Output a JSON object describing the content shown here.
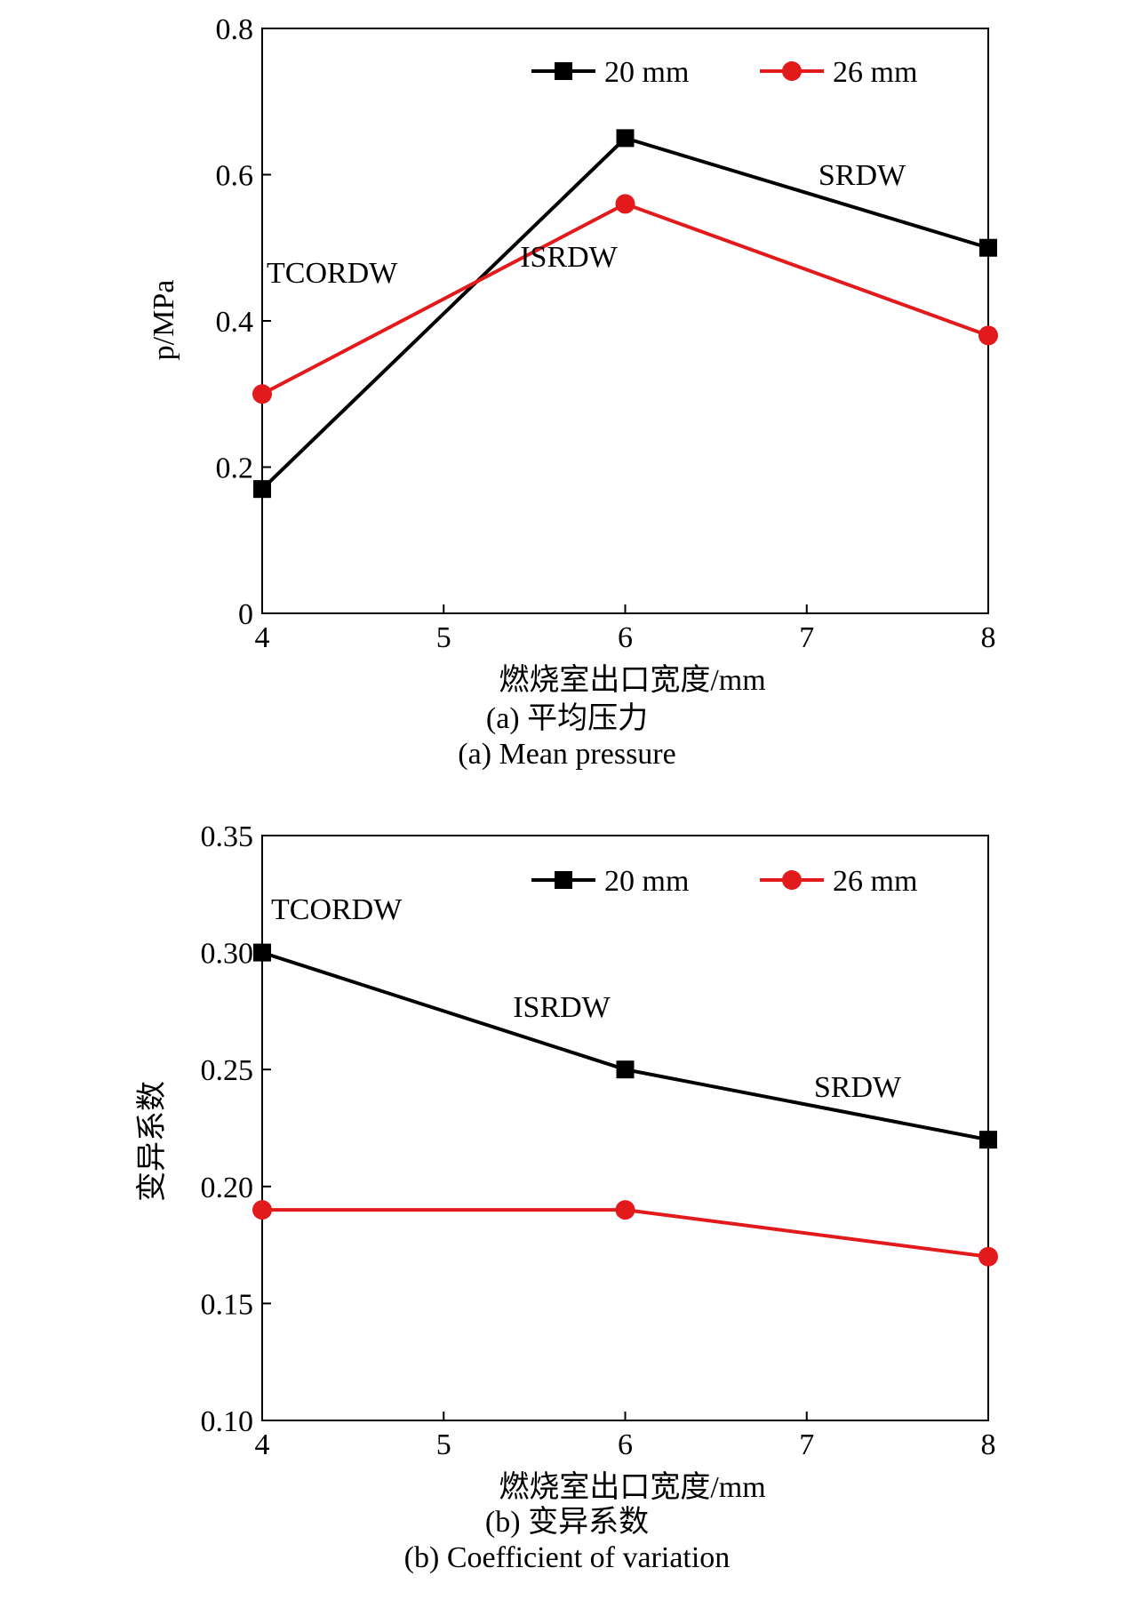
{
  "colors": {
    "black_series": "#000000",
    "red_series": "#e31a1c"
  },
  "chart_data": [
    {
      "type": "line",
      "xlabel": "燃烧室出口宽度/mm",
      "ylabel": "p/MPa",
      "x_ticks": [
        "4",
        "5",
        "6",
        "7",
        "8"
      ],
      "y_ticks": [
        "0",
        "0.2",
        "0.4",
        "0.6",
        "0.8"
      ],
      "xlim": [
        4,
        8
      ],
      "ylim": [
        0,
        0.8
      ],
      "grid": false,
      "legend_position": "top-right",
      "series": [
        {
          "name": "20 mm",
          "marker": "square",
          "color": "#000000",
          "x": [
            4,
            6,
            8
          ],
          "y": [
            0.17,
            0.65,
            0.5
          ]
        },
        {
          "name": "26 mm",
          "marker": "circle",
          "color": "#e31a1c",
          "x": [
            4,
            6,
            8
          ],
          "y": [
            0.3,
            0.56,
            0.38
          ]
        }
      ],
      "annotations": [
        {
          "text": "TCORDW",
          "x": 4,
          "y": 0.3
        },
        {
          "text": "ISRDW",
          "x": 6,
          "y": 0.56
        },
        {
          "text": "SRDW",
          "x": 8,
          "y": 0.5
        }
      ],
      "caption_cn": "(a) 平均压力",
      "caption_en": "(a) Mean pressure"
    },
    {
      "type": "line",
      "xlabel": "燃烧室出口宽度/mm",
      "ylabel": "变异系数",
      "x_ticks": [
        "4",
        "5",
        "6",
        "7",
        "8"
      ],
      "y_ticks": [
        "0.10",
        "0.15",
        "0.20",
        "0.25",
        "0.30",
        "0.35"
      ],
      "xlim": [
        4,
        8
      ],
      "ylim": [
        0.1,
        0.35
      ],
      "grid": false,
      "legend_position": "top-right",
      "series": [
        {
          "name": "20 mm",
          "marker": "square",
          "color": "#000000",
          "x": [
            4,
            6,
            8
          ],
          "y": [
            0.3,
            0.25,
            0.22
          ]
        },
        {
          "name": "26 mm",
          "marker": "circle",
          "color": "#e31a1c",
          "x": [
            4,
            6,
            8
          ],
          "y": [
            0.19,
            0.19,
            0.17
          ]
        }
      ],
      "annotations": [
        {
          "text": "TCORDW",
          "x": 4,
          "y": 0.3
        },
        {
          "text": "ISRDW",
          "x": 6,
          "y": 0.25
        },
        {
          "text": "SRDW",
          "x": 8,
          "y": 0.22
        }
      ],
      "caption_cn": "(b) 变异系数",
      "caption_en": "(b) Coefficient of variation"
    }
  ]
}
